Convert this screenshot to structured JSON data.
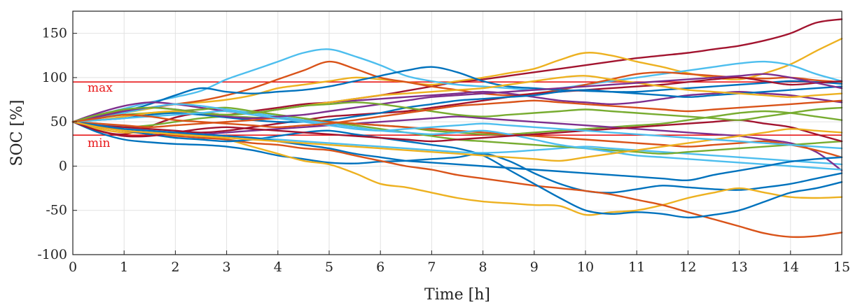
{
  "chart_data": {
    "type": "line",
    "title": "",
    "xlabel": "Time [h]",
    "ylabel": "SOC [%]",
    "xlim": [
      0,
      15
    ],
    "ylim": [
      -100,
      175
    ],
    "xticks": [
      0,
      1,
      2,
      3,
      4,
      5,
      6,
      7,
      8,
      9,
      10,
      11,
      12,
      13,
      14,
      15
    ],
    "yticks": [
      -100,
      -50,
      0,
      50,
      100,
      150
    ],
    "grid": true,
    "legend": "none",
    "reference_lines": [
      {
        "label": "max",
        "y": 95,
        "color": "#e8191b"
      },
      {
        "label": "min",
        "y": 35,
        "color": "#e8191b"
      }
    ],
    "x": [
      0,
      0.5,
      1,
      1.5,
      2,
      2.5,
      3,
      3.5,
      4,
      4.5,
      5,
      5.5,
      6,
      6.5,
      7,
      7.5,
      8,
      8.5,
      9,
      9.5,
      10,
      10.5,
      11,
      11.5,
      12,
      12.5,
      13,
      13.5,
      14,
      14.5,
      15
    ],
    "series": [
      {
        "color": "#a2142f",
        "values": [
          50,
          40,
          36,
          45,
          55,
          60,
          58,
          62,
          66,
          70,
          72,
          76,
          80,
          85,
          90,
          95,
          98,
          102,
          106,
          110,
          114,
          118,
          122,
          125,
          128,
          132,
          136,
          142,
          150,
          162,
          166
        ]
      },
      {
        "color": "#edb120",
        "values": [
          50,
          55,
          60,
          65,
          70,
          72,
          75,
          80,
          88,
          92,
          96,
          100,
          98,
          95,
          92,
          96,
          100,
          105,
          110,
          120,
          128,
          125,
          118,
          112,
          105,
          100,
          98,
          105,
          115,
          130,
          144
        ]
      },
      {
        "color": "#4dbeee",
        "values": [
          50,
          58,
          65,
          72,
          78,
          85,
          98,
          108,
          118,
          128,
          132,
          124,
          114,
          102,
          96,
          92,
          90,
          88,
          86,
          88,
          92,
          96,
          100,
          104,
          108,
          112,
          116,
          118,
          114,
          104,
          96
        ]
      },
      {
        "color": "#d95319",
        "values": [
          50,
          58,
          62,
          66,
          70,
          74,
          80,
          88,
          98,
          108,
          118,
          110,
          100,
          95,
          90,
          86,
          82,
          80,
          82,
          86,
          92,
          98,
          104,
          106,
          104,
          102,
          100,
          99,
          100,
          97,
          95
        ]
      },
      {
        "color": "#0072bd",
        "values": [
          50,
          38,
          30,
          27,
          25,
          24,
          22,
          18,
          12,
          8,
          4,
          3,
          5,
          6,
          8,
          10,
          14,
          6,
          -8,
          -20,
          -28,
          -30,
          -26,
          -22,
          -24,
          -26,
          -27,
          -24,
          -20,
          -14,
          -8
        ]
      },
      {
        "color": "#0072bd",
        "values": [
          50,
          56,
          62,
          70,
          80,
          88,
          84,
          82,
          84,
          86,
          90,
          96,
          102,
          108,
          112,
          106,
          96,
          90,
          88,
          86,
          85,
          84,
          84,
          86,
          88,
          90,
          92,
          94,
          96,
          95,
          93
        ]
      },
      {
        "color": "#edb120",
        "values": [
          50,
          42,
          38,
          38,
          36,
          34,
          30,
          22,
          14,
          6,
          2,
          -8,
          -20,
          -24,
          -30,
          -36,
          -40,
          -42,
          -44,
          -45,
          -55,
          -52,
          -50,
          -44,
          -36,
          -30,
          -25,
          -30,
          -35,
          -36,
          -35
        ]
      },
      {
        "color": "#d95319",
        "values": [
          50,
          45,
          40,
          36,
          34,
          32,
          30,
          26,
          24,
          20,
          18,
          12,
          6,
          0,
          -4,
          -10,
          -14,
          -18,
          -22,
          -25,
          -28,
          -32,
          -38,
          -44,
          -52,
          -60,
          -68,
          -76,
          -80,
          -79,
          -75
        ]
      },
      {
        "color": "#0072bd",
        "values": [
          50,
          44,
          40,
          36,
          32,
          30,
          28,
          30,
          34,
          38,
          40,
          36,
          32,
          28,
          24,
          20,
          12,
          -4,
          -20,
          -36,
          -50,
          -54,
          -52,
          -54,
          -58,
          -55,
          -50,
          -40,
          -30,
          -25,
          -18
        ]
      },
      {
        "color": "#7e2f8e",
        "values": [
          50,
          60,
          68,
          72,
          70,
          66,
          62,
          60,
          64,
          68,
          72,
          74,
          76,
          78,
          80,
          82,
          84,
          82,
          78,
          74,
          72,
          70,
          72,
          76,
          80,
          82,
          84,
          82,
          80,
          76,
          72
        ]
      },
      {
        "color": "#77ac30",
        "values": [
          50,
          46,
          44,
          46,
          50,
          54,
          56,
          55,
          54,
          52,
          50,
          48,
          46,
          44,
          40,
          38,
          36,
          36,
          38,
          40,
          42,
          44,
          46,
          48,
          52,
          56,
          60,
          62,
          60,
          56,
          52
        ]
      },
      {
        "color": "#4dbeee",
        "values": [
          50,
          48,
          44,
          40,
          38,
          36,
          34,
          32,
          30,
          28,
          26,
          24,
          22,
          20,
          18,
          16,
          15,
          16,
          18,
          20,
          22,
          20,
          18,
          16,
          14,
          12,
          10,
          8,
          6,
          4,
          2
        ]
      },
      {
        "color": "#a2142f",
        "values": [
          50,
          46,
          44,
          42,
          40,
          38,
          40,
          44,
          48,
          52,
          56,
          58,
          60,
          62,
          66,
          70,
          74,
          78,
          82,
          84,
          86,
          88,
          90,
          92,
          95,
          98,
          100,
          96,
          92,
          94,
          96
        ]
      },
      {
        "color": "#0072bd",
        "values": [
          50,
          52,
          54,
          58,
          60,
          58,
          55,
          52,
          50,
          50,
          52,
          56,
          60,
          66,
          70,
          74,
          76,
          78,
          80,
          84,
          86,
          84,
          82,
          80,
          78,
          80,
          82,
          84,
          86,
          88,
          90
        ]
      },
      {
        "color": "#7e2f8e",
        "values": [
          50,
          44,
          40,
          38,
          36,
          36,
          38,
          40,
          42,
          44,
          46,
          48,
          50,
          52,
          54,
          56,
          54,
          52,
          50,
          48,
          46,
          44,
          42,
          40,
          38,
          36,
          34,
          30,
          26,
          16,
          -5
        ]
      },
      {
        "color": "#77ac30",
        "values": [
          50,
          54,
          58,
          60,
          62,
          64,
          66,
          62,
          58,
          54,
          50,
          46,
          42,
          38,
          34,
          30,
          28,
          26,
          24,
          22,
          20,
          18,
          16,
          14,
          16,
          18,
          20,
          22,
          24,
          26,
          28
        ]
      },
      {
        "color": "#edb120",
        "values": [
          50,
          52,
          56,
          60,
          62,
          60,
          58,
          60,
          64,
          68,
          72,
          76,
          80,
          82,
          84,
          86,
          88,
          92,
          96,
          100,
          102,
          98,
          94,
          90,
          86,
          84,
          82,
          80,
          78,
          80,
          82
        ]
      },
      {
        "color": "#d95319",
        "values": [
          50,
          48,
          46,
          44,
          46,
          48,
          50,
          52,
          54,
          52,
          50,
          48,
          46,
          44,
          42,
          40,
          38,
          36,
          34,
          32,
          30,
          28,
          26,
          24,
          22,
          24,
          26,
          28,
          24,
          18,
          10
        ]
      },
      {
        "color": "#4dbeee",
        "values": [
          50,
          54,
          60,
          66,
          70,
          68,
          64,
          60,
          56,
          52,
          48,
          44,
          40,
          38,
          36,
          38,
          40,
          36,
          30,
          24,
          20,
          16,
          12,
          10,
          8,
          6,
          4,
          2,
          0,
          -2,
          -4
        ]
      },
      {
        "color": "#7e2f8e",
        "values": [
          50,
          56,
          62,
          66,
          64,
          60,
          56,
          54,
          56,
          58,
          62,
          66,
          70,
          74,
          78,
          80,
          82,
          84,
          86,
          88,
          90,
          92,
          94,
          96,
          98,
          100,
          102,
          104,
          100,
          94,
          88
        ]
      },
      {
        "color": "#a2142f",
        "values": [
          50,
          40,
          34,
          34,
          38,
          42,
          44,
          42,
          40,
          38,
          36,
          34,
          32,
          30,
          28,
          30,
          32,
          34,
          36,
          38,
          40,
          42,
          44,
          46,
          48,
          50,
          52,
          48,
          44,
          36,
          28
        ]
      },
      {
        "color": "#0072bd",
        "values": [
          50,
          46,
          42,
          40,
          38,
          36,
          34,
          32,
          28,
          24,
          20,
          14,
          10,
          6,
          4,
          2,
          0,
          -2,
          -4,
          -6,
          -8,
          -10,
          -12,
          -14,
          -16,
          -10,
          -5,
          0,
          5,
          8,
          10
        ]
      },
      {
        "color": "#77ac30",
        "values": [
          50,
          58,
          64,
          66,
          64,
          60,
          58,
          60,
          64,
          68,
          70,
          72,
          70,
          66,
          62,
          58,
          56,
          58,
          60,
          62,
          64,
          62,
          60,
          58,
          56,
          54,
          52,
          56,
          60,
          64,
          66
        ]
      },
      {
        "color": "#edb120",
        "values": [
          50,
          44,
          40,
          38,
          36,
          34,
          32,
          30,
          28,
          26,
          24,
          22,
          20,
          18,
          16,
          14,
          12,
          10,
          8,
          6,
          10,
          14,
          18,
          22,
          26,
          30,
          34,
          38,
          42,
          40,
          38
        ]
      },
      {
        "color": "#4dbeee",
        "values": [
          50,
          52,
          54,
          56,
          58,
          60,
          62,
          58,
          54,
          50,
          46,
          42,
          40,
          42,
          44,
          46,
          48,
          46,
          44,
          42,
          40,
          38,
          36,
          34,
          32,
          30,
          28,
          26,
          24,
          22,
          20
        ]
      },
      {
        "color": "#d95319",
        "values": [
          50,
          54,
          58,
          56,
          52,
          50,
          48,
          46,
          44,
          46,
          48,
          52,
          56,
          60,
          64,
          68,
          70,
          72,
          74,
          72,
          70,
          68,
          66,
          64,
          62,
          64,
          66,
          68,
          70,
          72,
          74
        ]
      }
    ]
  }
}
